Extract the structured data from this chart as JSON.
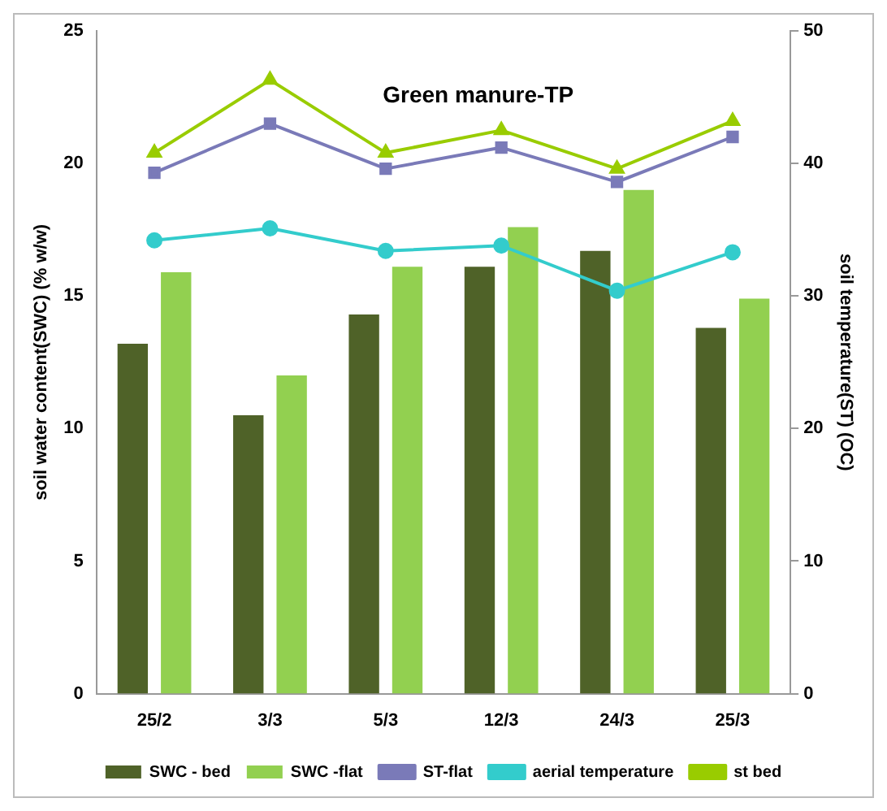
{
  "chart_data": {
    "type": "bar",
    "title": "Green manure-TP",
    "ylabel": "soil water content(SWC) (% w/w)",
    "y2label": "soil temperature(ST) (OC)",
    "categories": [
      "25/2",
      "3/3",
      "5/3",
      "12/3",
      "24/3",
      "25/3"
    ],
    "series": [
      {
        "name": "SWC - bed",
        "color": "#4f6228",
        "values": [
          13.2,
          10.5,
          14.3,
          16.1,
          16.7,
          13.8
        ]
      },
      {
        "name": "SWC -flat",
        "color": "#92d050",
        "values": [
          15.9,
          12.0,
          16.1,
          17.6,
          19.0,
          14.9
        ]
      },
      {
        "name": "ST-flat",
        "type": "line",
        "axis": "y2",
        "marker": "square",
        "color": "#7a7ab8",
        "values": [
          39.3,
          43.0,
          39.6,
          41.2,
          38.6,
          42.0
        ]
      },
      {
        "name": "aerial temperature",
        "type": "line",
        "axis": "y2",
        "marker": "circle",
        "color": "#33cccc",
        "values": [
          34.2,
          35.1,
          33.4,
          33.8,
          30.4,
          33.3
        ]
      },
      {
        "name": "st bed",
        "type": "line",
        "axis": "y2",
        "marker": "triangle",
        "color": "#99cc00",
        "values": [
          40.8,
          46.3,
          40.8,
          42.5,
          39.6,
          43.2
        ]
      }
    ],
    "ylim": [
      0,
      25
    ],
    "yticks": [
      0,
      5,
      10,
      15,
      20,
      25
    ],
    "y2lim": [
      0,
      50
    ],
    "y2ticks": [
      0,
      10,
      20,
      30,
      40,
      50
    ],
    "grid": false,
    "legend": "bottom"
  }
}
